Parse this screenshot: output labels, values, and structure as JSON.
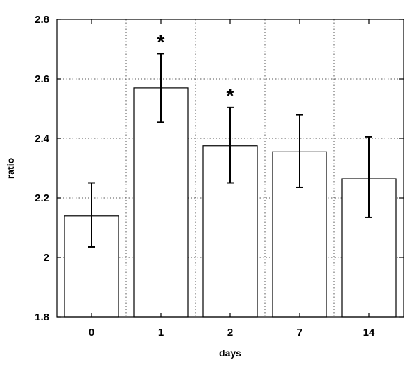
{
  "chart_data": {
    "type": "bar",
    "title": "",
    "xlabel": "days",
    "ylabel": "ratio",
    "categories": [
      "0",
      "1",
      "2",
      "7",
      "14"
    ],
    "values": [
      2.14,
      2.57,
      2.375,
      2.355,
      2.265
    ],
    "error_low": [
      2.035,
      2.455,
      2.25,
      2.235,
      2.135
    ],
    "error_high": [
      2.25,
      2.685,
      2.505,
      2.48,
      2.405
    ],
    "annotations": [
      {
        "category": "1",
        "text": "*",
        "y": 2.735
      },
      {
        "category": "2",
        "text": "*",
        "y": 2.555
      }
    ],
    "ylim": [
      1.8,
      2.8
    ],
    "yticks": [
      "1.8",
      "2",
      "2.2",
      "2.4",
      "2.6",
      "2.8"
    ],
    "grid": true,
    "grid_style": "dotted",
    "colors": {
      "bar_fill": "#ffffff",
      "bar_stroke": "#000000",
      "grid": "#555555"
    }
  }
}
